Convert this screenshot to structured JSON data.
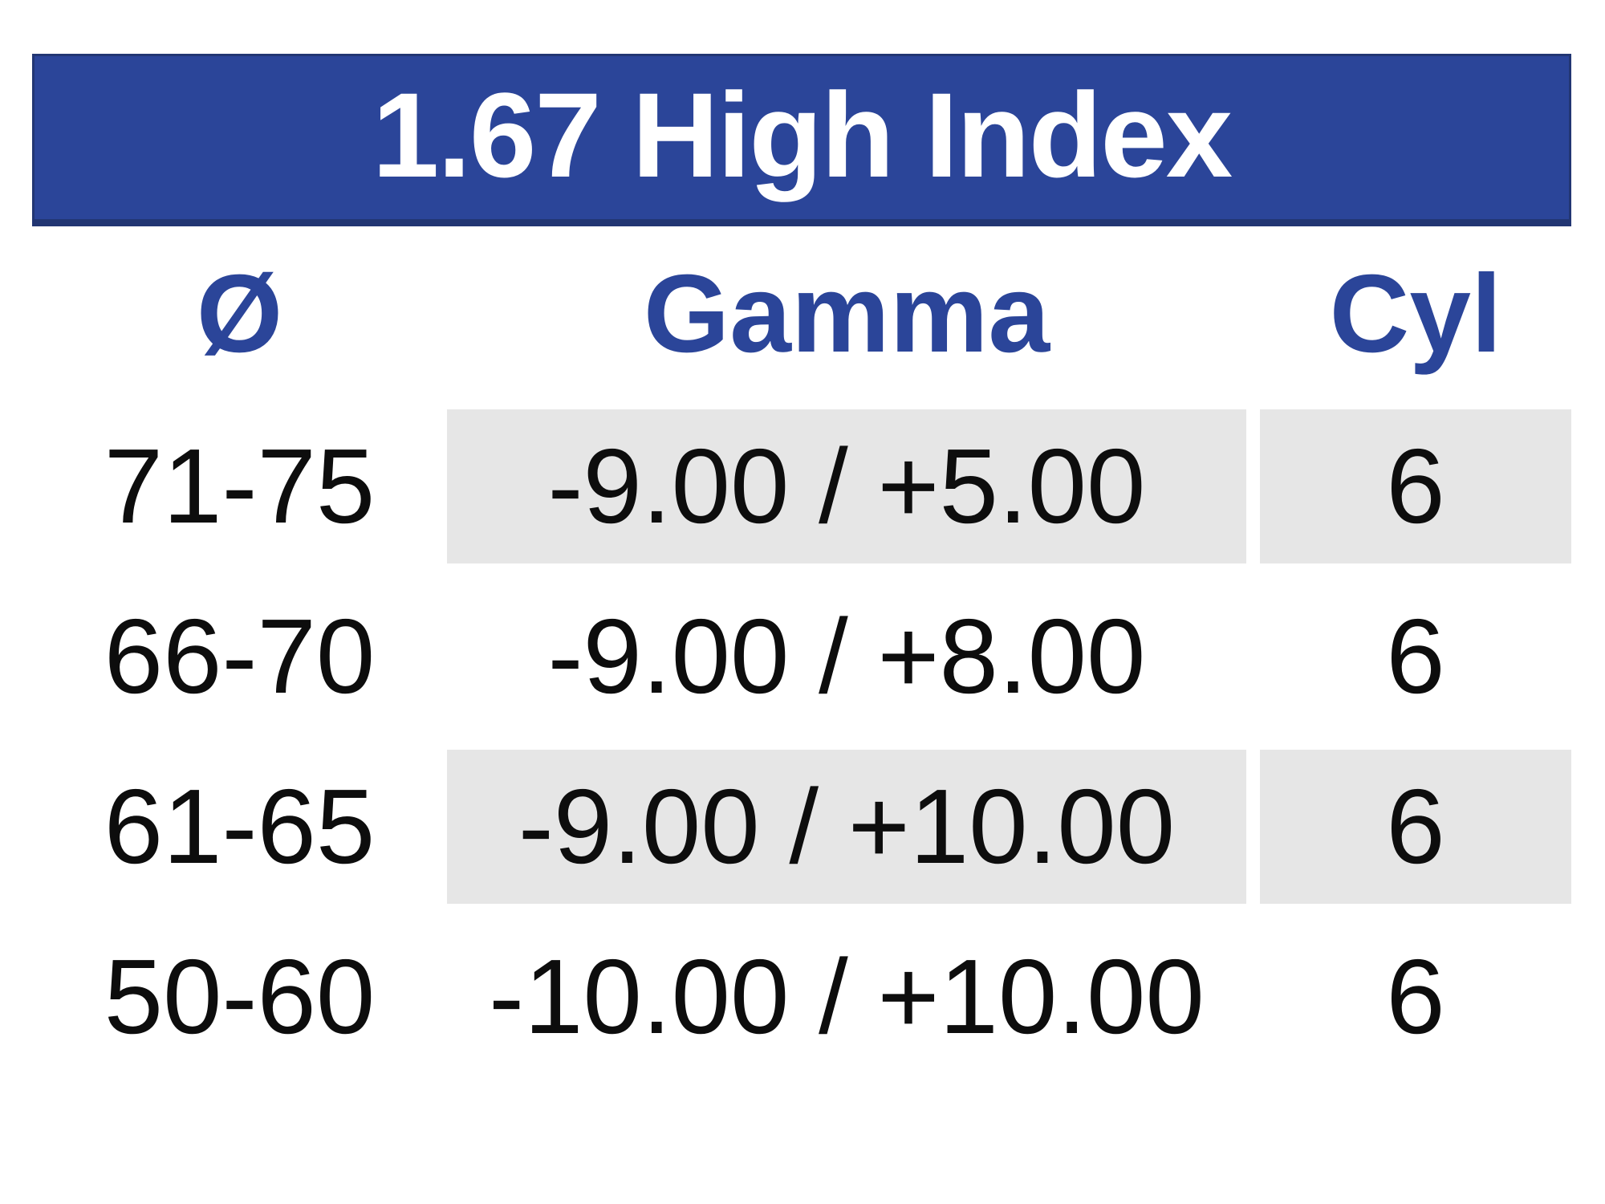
{
  "title": "1.67 High Index",
  "colors": {
    "banner_background": "#2B4599",
    "banner_border": "#223673",
    "header_text": "#2B4599",
    "title_text": "#FFFFFF",
    "row_band": "#E6E6E6",
    "data_text": "#0D0D0D",
    "page_background": "#FFFFFF"
  },
  "table": {
    "columns": [
      {
        "key": "diameter",
        "label": "Ø"
      },
      {
        "key": "gamma",
        "label": "Gamma"
      },
      {
        "key": "cyl",
        "label": "Cyl"
      }
    ],
    "rows": [
      {
        "diameter": "71-75",
        "gamma": "-9.00 / +5.00",
        "cyl": "6",
        "shaded": true
      },
      {
        "diameter": "66-70",
        "gamma": "-9.00 / +8.00",
        "cyl": "6",
        "shaded": false
      },
      {
        "diameter": "61-65",
        "gamma": "-9.00 / +10.00",
        "cyl": "6",
        "shaded": true
      },
      {
        "diameter": "50-60",
        "gamma": "-10.00 / +10.00",
        "cyl": "6",
        "shaded": false
      }
    ]
  }
}
